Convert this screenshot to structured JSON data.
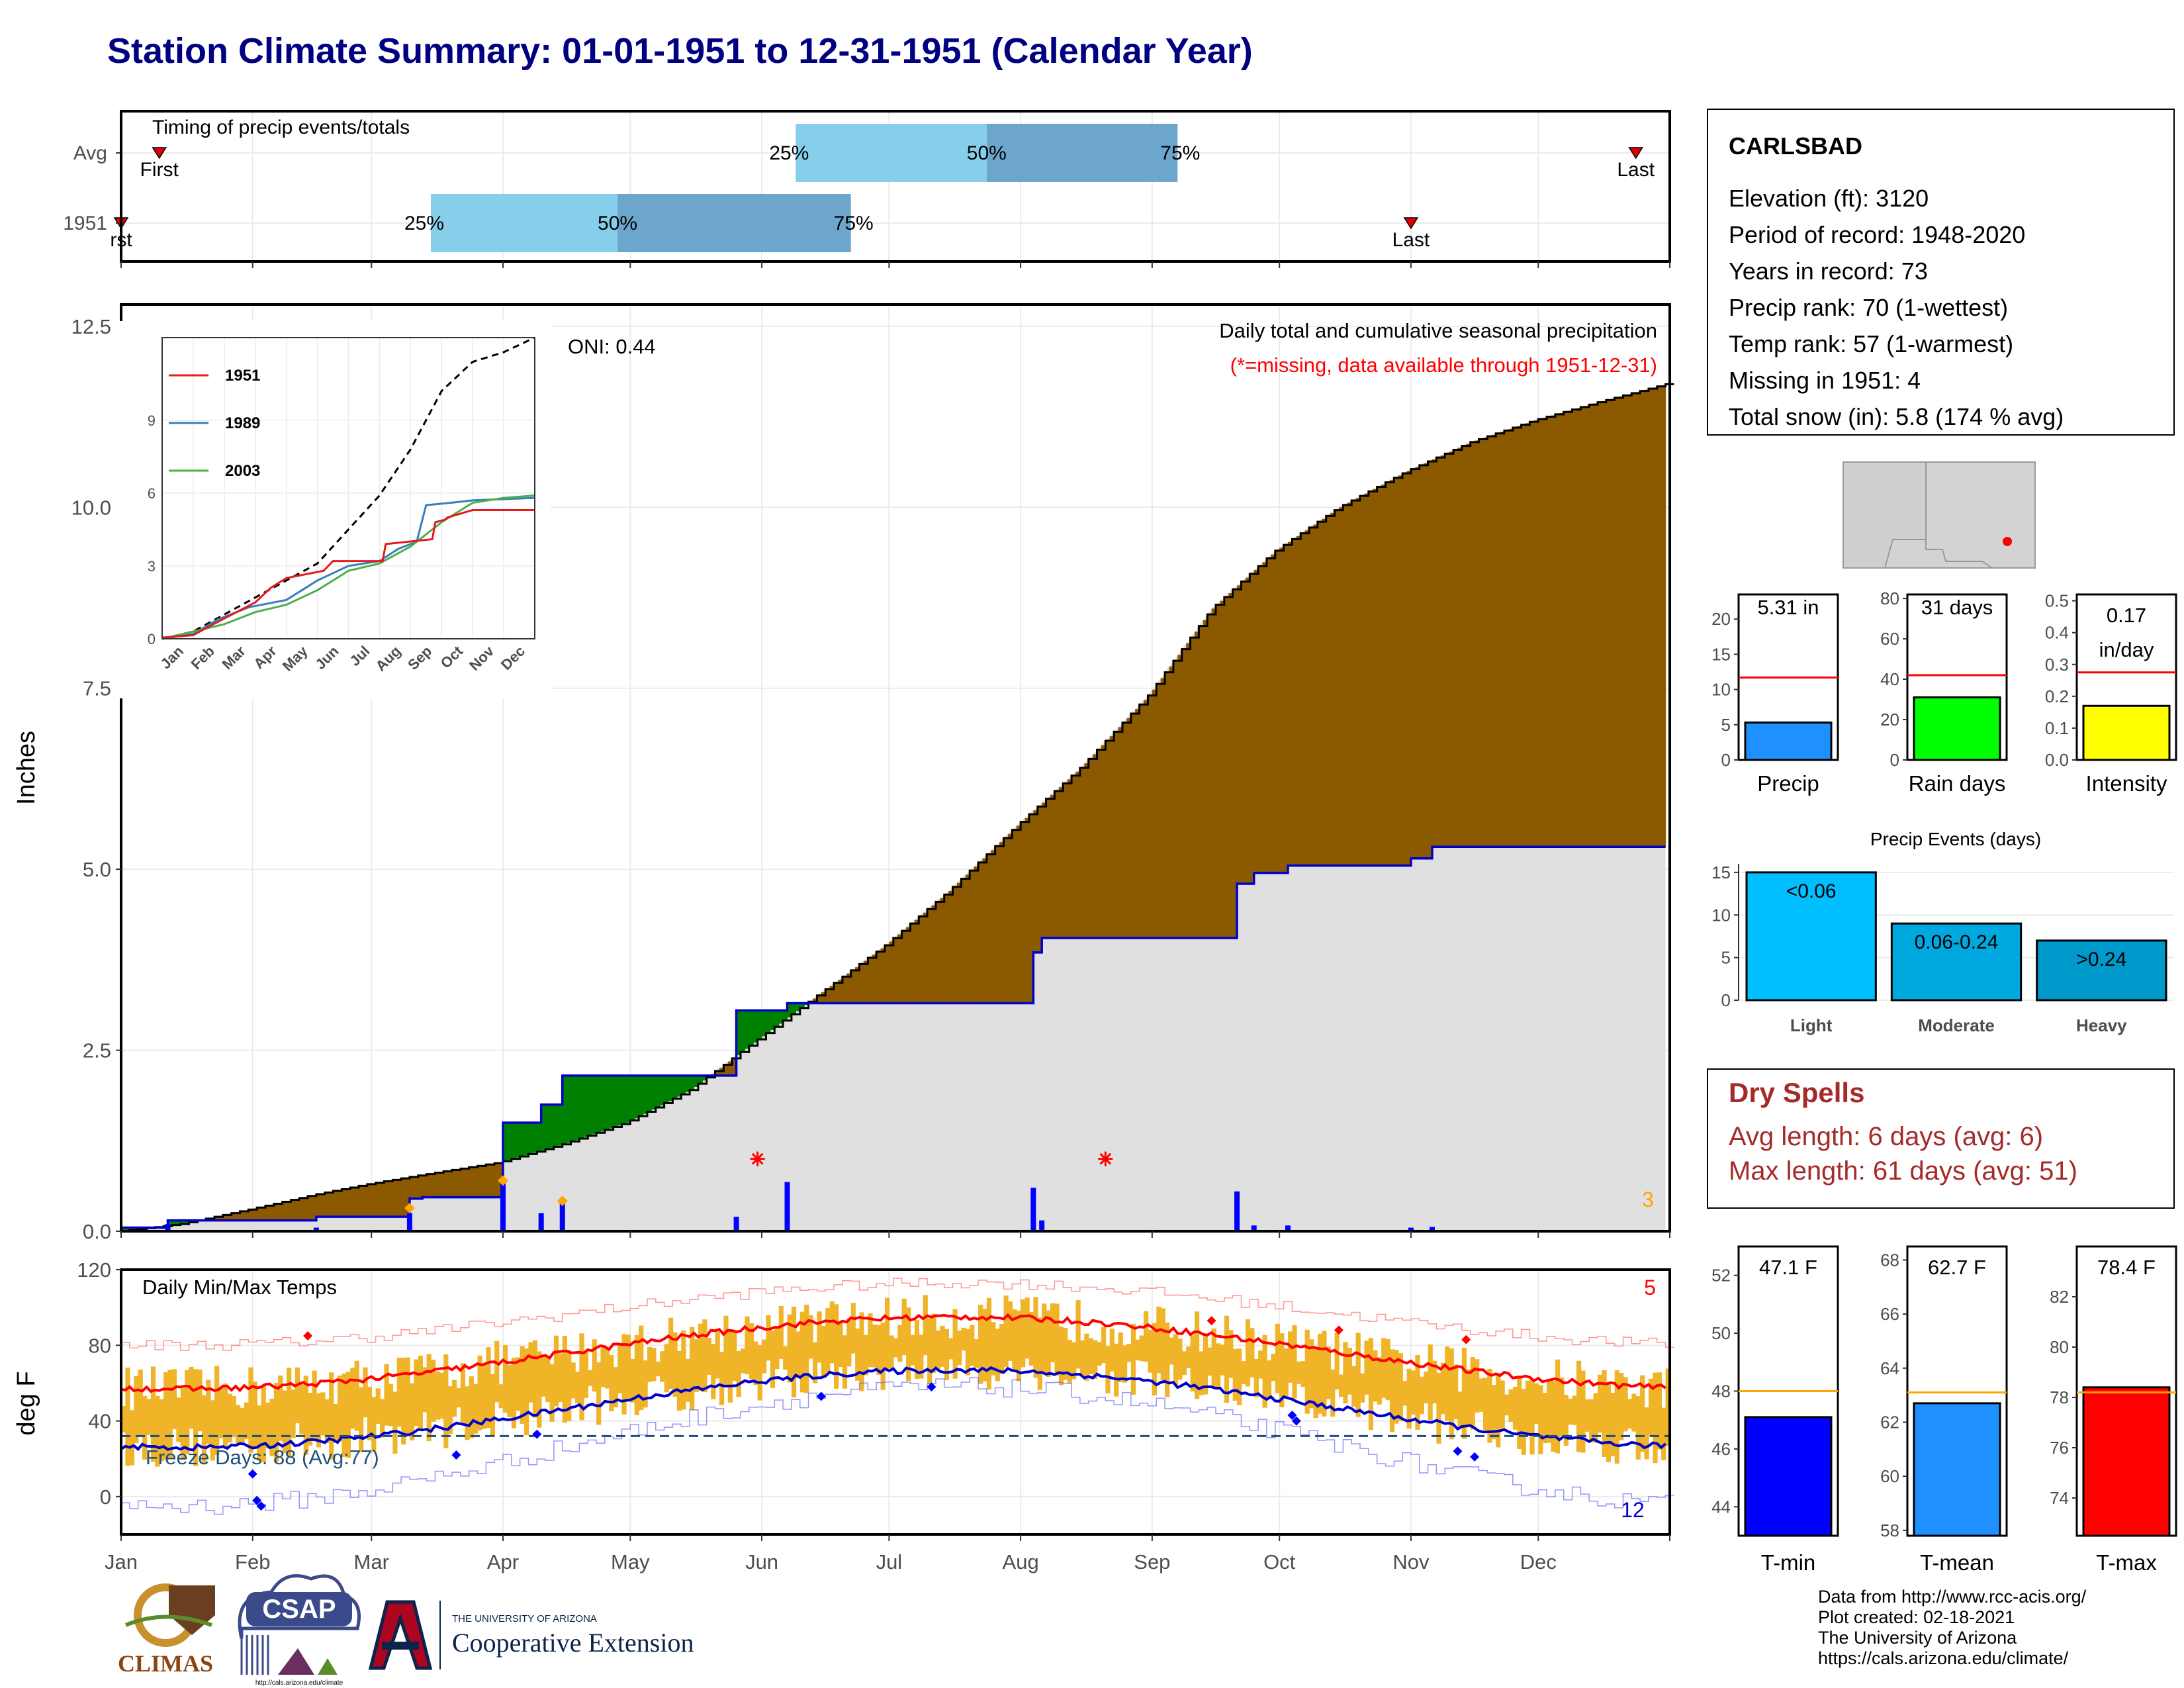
{
  "title": "Station Climate Summary: 01-01-1951 to 12-31-1951 (Calendar Year)",
  "colors": {
    "title": "#000080",
    "cum_year": "#0000cc",
    "above_avg": "#8b5a00",
    "below_avg": "#008000",
    "avg_fill": "#e0e0e0",
    "precip_bar": "#0000ff",
    "tmax": "#ff0000",
    "tmin": "#0000cc",
    "temp_range": "#f0b429",
    "freeze_line": "#1f4e79",
    "timing_light": "#87ceeb",
    "timing_dark": "#6ca6cd",
    "dry_spell": "#a52a2a"
  },
  "timing_panel": {
    "title": "Timing of precip events/totals",
    "rows": [
      {
        "label": "Avg",
        "first_label": "First",
        "first_doy": 10,
        "p25_label": "25%",
        "p25_doy": 160,
        "p50_label": "50%",
        "p50_doy": 205,
        "p75_label": "75%",
        "p75_doy": 250,
        "last_label": "Last",
        "last_doy": 358
      },
      {
        "label": "1951",
        "first_label": "rst",
        "first_doy": 1,
        "p25_label": "25%",
        "p25_doy": 74,
        "p50_label": "50%",
        "p50_doy": 118,
        "p75_label": "75%",
        "p75_doy": 173,
        "last_label": "Last",
        "last_doy": 305
      }
    ]
  },
  "station_box": {
    "name": "CARLSBAD",
    "lines": [
      "Elevation (ft): 3120",
      "Period of record: 1948-2020",
      "Years in record: 73",
      "Precip rank: 70 (1-wettest)",
      "Temp rank: 57 (1-warmest)",
      "Missing in 1951: 4",
      "Total snow (in): 5.8 (174 % avg)"
    ]
  },
  "main_precip": {
    "ylabel": "Inches",
    "yticks": [
      "0.0",
      "2.5",
      "5.0",
      "7.5",
      "10.0",
      "12.5"
    ],
    "ylim": [
      0,
      12.8
    ],
    "annotation_title": "Daily total and cumulative seasonal precipitation",
    "annotation_missing": "(*=missing, data available through 1951-12-31)",
    "oni": "ONI: 0.44",
    "corner_count": "3",
    "avg_cumulative": {
      "doy": [
        1,
        15,
        31,
        46,
        59,
        74,
        90,
        105,
        120,
        135,
        151,
        166,
        181,
        196,
        212,
        227,
        243,
        258,
        273,
        288,
        304,
        319,
        334,
        349,
        365
      ],
      "values": [
        0.0,
        0.1,
        0.3,
        0.5,
        0.65,
        0.8,
        0.95,
        1.2,
        1.5,
        1.95,
        2.65,
        3.3,
        3.95,
        4.7,
        5.6,
        6.4,
        7.4,
        8.6,
        9.4,
        10.0,
        10.5,
        10.9,
        11.2,
        11.45,
        11.7
      ]
    },
    "year_cumulative": {
      "doy": [
        1,
        12,
        12,
        47,
        47,
        69,
        69,
        72,
        72,
        91,
        91,
        100,
        100,
        105,
        105,
        146,
        146,
        158,
        158,
        216,
        216,
        218,
        218,
        264,
        264,
        268,
        268,
        276,
        276,
        305,
        305,
        310,
        310,
        365
      ],
      "values": [
        0.05,
        0.05,
        0.15,
        0.15,
        0.2,
        0.2,
        0.45,
        0.45,
        0.47,
        0.47,
        1.5,
        1.5,
        1.75,
        1.75,
        2.15,
        2.15,
        3.05,
        3.05,
        3.15,
        3.15,
        3.85,
        3.85,
        4.05,
        4.05,
        4.8,
        4.8,
        4.95,
        4.95,
        5.05,
        5.05,
        5.15,
        5.15,
        5.31,
        5.31
      ]
    },
    "daily_bars": [
      {
        "doy": 12,
        "v": 0.1
      },
      {
        "doy": 47,
        "v": 0.05
      },
      {
        "doy": 69,
        "v": 0.25
      },
      {
        "doy": 91,
        "v": 0.72
      },
      {
        "doy": 100,
        "v": 0.25
      },
      {
        "doy": 105,
        "v": 0.4
      },
      {
        "doy": 146,
        "v": 0.2
      },
      {
        "doy": 158,
        "v": 0.68
      },
      {
        "doy": 216,
        "v": 0.6
      },
      {
        "doy": 218,
        "v": 0.15
      },
      {
        "doy": 264,
        "v": 0.55
      },
      {
        "doy": 268,
        "v": 0.08
      },
      {
        "doy": 276,
        "v": 0.08
      },
      {
        "doy": 305,
        "v": 0.05
      },
      {
        "doy": 310,
        "v": 0.06
      }
    ],
    "snow_markers": [
      {
        "doy": 69,
        "v": 0.32
      },
      {
        "doy": 91,
        "v": 0.7
      },
      {
        "doy": 105,
        "v": 0.42
      }
    ],
    "missing_markers": [
      {
        "doy": 151,
        "v": 1.0
      },
      {
        "doy": 233,
        "v": 1.0
      }
    ]
  },
  "inset": {
    "yticks": [
      "0",
      "3",
      "6",
      "9"
    ],
    "xticks": [
      "Jan",
      "Feb",
      "Mar",
      "Apr",
      "May",
      "Jun",
      "Jul",
      "Aug",
      "Sep",
      "Oct",
      "Nov",
      "Dec"
    ],
    "legend": [
      {
        "name": "1951",
        "color": "#e41a1c"
      },
      {
        "name": "1989",
        "color": "#377eb8"
      },
      {
        "name": "2003",
        "color": "#4daf4a"
      }
    ],
    "avg": {
      "x": [
        0,
        1,
        2,
        3,
        4,
        5,
        6,
        7,
        8,
        9,
        10,
        11,
        12
      ],
      "y": [
        0,
        0.3,
        1.0,
        1.7,
        2.4,
        3.1,
        4.5,
        5.9,
        7.8,
        10.2,
        11.4,
        11.8,
        12.4
      ]
    },
    "s1951": {
      "x": [
        0,
        1,
        1.5,
        2.1,
        3,
        3.5,
        4,
        5.2,
        5.5,
        7.1,
        7.2,
        8.7,
        8.8,
        9.1,
        9.2,
        10,
        12
      ],
      "y": [
        0.05,
        0.15,
        0.5,
        0.9,
        1.5,
        2.1,
        2.5,
        2.8,
        3.2,
        3.2,
        3.9,
        4.1,
        4.8,
        4.9,
        5.0,
        5.3,
        5.3
      ]
    },
    "s1989": {
      "x": [
        0,
        1,
        1.8,
        2.8,
        4,
        5,
        6,
        7,
        7.6,
        8.2,
        8.5,
        9.3,
        10,
        12
      ],
      "y": [
        0,
        0.2,
        0.8,
        1.3,
        1.6,
        2.4,
        3.0,
        3.2,
        3.7,
        4.0,
        5.5,
        5.6,
        5.7,
        5.8
      ]
    },
    "s2003": {
      "x": [
        0,
        1,
        2,
        3,
        4,
        5,
        6,
        7,
        8,
        9,
        10,
        11,
        12
      ],
      "y": [
        0,
        0.3,
        0.6,
        1.1,
        1.4,
        2.0,
        2.8,
        3.1,
        3.8,
        4.8,
        5.6,
        5.8,
        5.9
      ]
    }
  },
  "temp_panel": {
    "title": "Daily Min/Max Temps",
    "ylabel": "deg F",
    "yticks": [
      "0",
      "40",
      "80",
      "120"
    ],
    "ylim": [
      -20,
      120
    ],
    "freeze_label": "Freeze Days: 88 (Avg:77)",
    "freeze_temp": 32,
    "count_above": "5",
    "count_below": "12",
    "avg_tmax_peak": 95,
    "avg_tmax_low": 57,
    "avg_tmin_peak": 67,
    "avg_tmin_low": 26,
    "record_high_peak": 113,
    "record_high_low": 80,
    "record_low_peak": 58,
    "record_low_low": -5,
    "xticks": [
      "Jan",
      "Feb",
      "Mar",
      "Apr",
      "May",
      "Jun",
      "Jul",
      "Aug",
      "Sep",
      "Oct",
      "Nov",
      "Dec"
    ]
  },
  "summary_bars": {
    "precip": {
      "label": "Precip",
      "value_text": "5.31 in",
      "value": 5.31,
      "avg": 11.7,
      "ymax": 23.5,
      "yticks": [
        0,
        5,
        10,
        15,
        20
      ],
      "color": "#1e90ff"
    },
    "rain_days": {
      "label": "Rain days",
      "value_text": "31 days",
      "value": 31,
      "avg": 42,
      "ymax": 82,
      "yticks": [
        0,
        20,
        40,
        60,
        80
      ],
      "color": "#00ff00"
    },
    "intensity": {
      "label": "Intensity",
      "value_text": "0.17",
      "value_text2": "in/day",
      "value": 0.17,
      "avg": 0.275,
      "ymax": 0.52,
      "yticks": [
        "0.0",
        "0.1",
        "0.2",
        "0.3",
        "0.4",
        "0.5"
      ],
      "color": "#ffff00"
    }
  },
  "precip_events": {
    "title": "Precip Events (days)",
    "yticks": [
      0,
      5,
      10,
      15
    ],
    "ymax": 16,
    "bars": [
      {
        "label": "Light",
        "range": "<0.06",
        "value": 15,
        "color": "#00bfff"
      },
      {
        "label": "Moderate",
        "range": "0.06-0.24",
        "value": 9,
        "color": "#00a8e0"
      },
      {
        "label": "Heavy",
        "range": ">0.24",
        "value": 7,
        "color": "#0099cc"
      }
    ]
  },
  "dry_spells": {
    "title": "Dry Spells",
    "avg": "Avg length: 6 days (avg: 6)",
    "max": "Max length: 61 days (avg: 51)"
  },
  "temp_bars": {
    "tmin": {
      "label": "T-min",
      "value_text": "47.1 F",
      "value": 47.1,
      "avg": 48.0,
      "ymin": 43,
      "ymax": 53,
      "yticks": [
        44,
        46,
        48,
        50,
        52
      ],
      "color": "#0000ff"
    },
    "tmean": {
      "label": "T-mean",
      "value_text": "62.7 F",
      "value": 62.7,
      "avg": 63.1,
      "ymin": 57.8,
      "ymax": 68.5,
      "yticks": [
        58,
        60,
        62,
        64,
        66,
        68
      ],
      "color": "#1e90ff"
    },
    "tmax": {
      "label": "T-max",
      "value_text": "78.4 F",
      "value": 78.4,
      "avg": 78.2,
      "ymin": 72.5,
      "ymax": 84,
      "yticks": [
        74,
        76,
        78,
        80,
        82
      ],
      "color": "#ff0000"
    }
  },
  "logos": {
    "climas": "CLIMAS",
    "csap": "CSAP",
    "csap_url": "http://cals.arizona.edu/climate",
    "ua_top": "THE UNIVERSITY OF ARIZONA",
    "ua_main": "Cooperative Extension"
  },
  "footer": [
    "Data from http://www.rcc-acis.org/",
    "Plot created: 02-18-2021",
    "The University of Arizona",
    "https://cals.arizona.edu/climate/"
  ]
}
